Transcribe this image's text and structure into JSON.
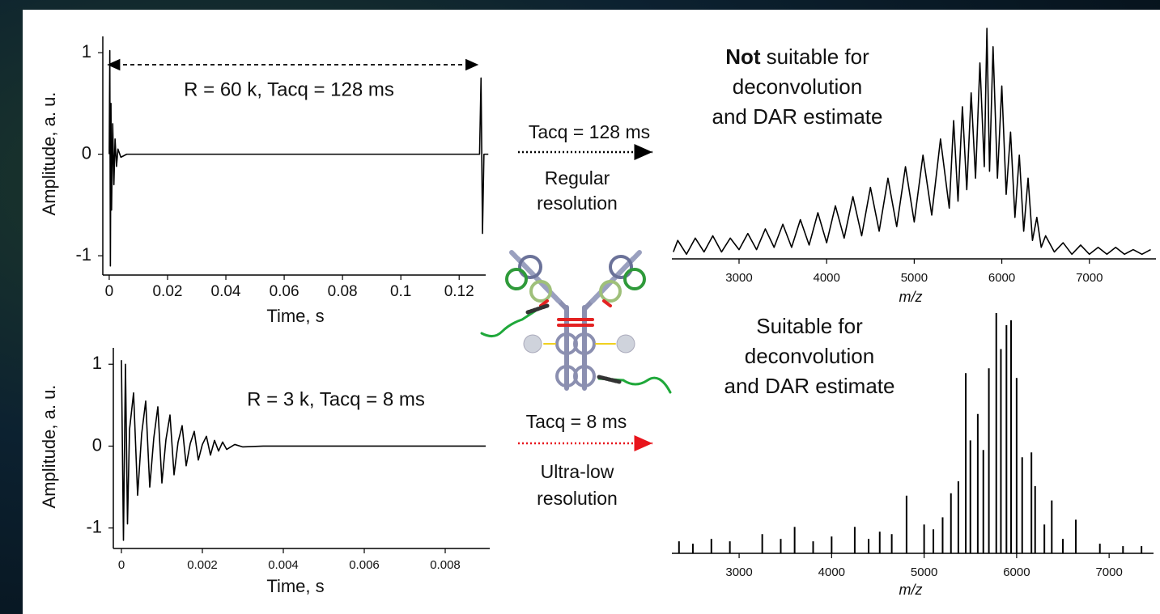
{
  "chart_data": [
    {
      "type": "line",
      "annotation": "R = 60 k, Tacq = 128 ms",
      "xlabel": "Time, s",
      "ylabel": "Amplitude, a. u.",
      "color": "#000000",
      "annotation_color": "#000000",
      "xlim": [
        -0.0022,
        0.1291
      ],
      "ylim": [
        -1.19,
        1.16
      ],
      "xticks": [
        0,
        0.02,
        0.04,
        0.06,
        0.08,
        0.1,
        0.12
      ],
      "yticks": [
        -1,
        0,
        1
      ],
      "x": [
        0,
        0.0002,
        0.0004,
        0.0006,
        0.0008,
        0.0012,
        0.0016,
        0.002,
        0.0025,
        0.003,
        0.004,
        0.006,
        0.127,
        0.1275,
        0.128,
        0.1285,
        0.13
      ],
      "values": [
        0,
        1.02,
        -1.1,
        0.5,
        -0.55,
        0.3,
        -0.3,
        0.15,
        -0.12,
        0.05,
        -0.03,
        0,
        0,
        0.75,
        -0.78,
        0,
        0
      ]
    },
    {
      "type": "line",
      "annotation": "R = 3 k, Tacq = 8 ms",
      "xlabel": "Time, s",
      "ylabel": "Amplitude, a. u.",
      "color": "#000000",
      "annotation_color": "#e8141b",
      "xlim": [
        -0.0002,
        0.0091
      ],
      "ylim": [
        -1.25,
        1.2
      ],
      "xticks": [
        0,
        0.002,
        0.004,
        0.006,
        0.008
      ],
      "yticks": [
        -1,
        0,
        1
      ],
      "x": [
        0,
        5e-05,
        0.0001,
        0.00015,
        0.0002,
        0.0003,
        0.0004,
        0.0005,
        0.0006,
        0.0007,
        0.0008,
        0.0009,
        0.001,
        0.0011,
        0.0012,
        0.0013,
        0.0014,
        0.0015,
        0.0016,
        0.0017,
        0.0018,
        0.0019,
        0.002,
        0.0021,
        0.0022,
        0.0023,
        0.0024,
        0.0025,
        0.0026,
        0.0028,
        0.003,
        0.0035,
        0.009
      ],
      "values": [
        1.05,
        -1.15,
        1.0,
        -0.95,
        0.2,
        0.65,
        -0.6,
        0.15,
        0.55,
        -0.5,
        0.1,
        0.48,
        -0.45,
        0.08,
        0.38,
        -0.35,
        0.05,
        0.25,
        -0.24,
        0.03,
        0.18,
        -0.17,
        0.02,
        0.12,
        -0.11,
        0.07,
        -0.06,
        0.05,
        -0.04,
        0.02,
        -0.01,
        0,
        0
      ]
    },
    {
      "type": "line",
      "title_emphasis": "Not",
      "title_rest": "suitable for",
      "title": [
        "deconvolution",
        "and DAR estimate"
      ],
      "xlabel": "m/z",
      "color": "#000000",
      "xlim": [
        2233,
        7760
      ],
      "ylim": [
        0,
        100
      ],
      "xticks": [
        3000,
        4000,
        5000,
        6000,
        7000
      ],
      "x": [
        2250,
        2300,
        2400,
        2500,
        2600,
        2700,
        2800,
        2900,
        3000,
        3100,
        3200,
        3300,
        3400,
        3500,
        3600,
        3700,
        3800,
        3900,
        4000,
        4100,
        4200,
        4300,
        4400,
        4500,
        4600,
        4700,
        4800,
        4900,
        5000,
        5100,
        5200,
        5300,
        5400,
        5450,
        5500,
        5550,
        5600,
        5650,
        5700,
        5750,
        5800,
        5830,
        5860,
        5900,
        5950,
        6000,
        6050,
        6100,
        6150,
        6200,
        6250,
        6300,
        6350,
        6400,
        6450,
        6500,
        6600,
        6700,
        6800,
        6900,
        7000,
        7100,
        7200,
        7300,
        7400,
        7500,
        7600,
        7700
      ],
      "values": [
        3,
        8,
        2,
        9,
        3,
        10,
        3,
        9,
        4,
        11,
        4,
        13,
        5,
        15,
        5,
        17,
        6,
        20,
        7,
        23,
        9,
        27,
        10,
        31,
        12,
        35,
        14,
        40,
        16,
        45,
        19,
        52,
        22,
        60,
        25,
        66,
        30,
        72,
        35,
        85,
        40,
        100,
        38,
        92,
        35,
        75,
        28,
        55,
        18,
        45,
        12,
        35,
        8,
        18,
        5,
        10,
        3,
        7,
        2,
        6,
        2,
        5,
        2,
        5,
        2,
        4,
        2,
        4
      ]
    },
    {
      "type": "stem",
      "title": [
        "Suitable for",
        "deconvolution",
        "and DAR estimate"
      ],
      "xlabel": "m/z",
      "color": "#000000",
      "xlim": [
        2273,
        7480
      ],
      "ylim": [
        0,
        100
      ],
      "xticks": [
        3000,
        4000,
        5000,
        6000,
        7000
      ],
      "x": [
        2350,
        2500,
        2700,
        2900,
        3250,
        3450,
        3600,
        3800,
        4000,
        4250,
        4400,
        4520,
        4650,
        4810,
        5000,
        5100,
        5200,
        5290,
        5370,
        5450,
        5500,
        5580,
        5640,
        5700,
        5780,
        5830,
        5890,
        5940,
        6000,
        6060,
        6160,
        6200,
        6300,
        6380,
        6500,
        6640,
        6900,
        7150,
        7350
      ],
      "values": [
        5,
        4,
        6,
        5,
        8,
        6,
        11,
        5,
        7,
        11,
        6,
        9,
        8,
        24,
        12,
        10,
        15,
        25,
        30,
        75,
        47,
        58,
        43,
        77,
        100,
        85,
        95,
        97,
        73,
        40,
        42,
        28,
        12,
        22,
        6,
        14,
        4,
        3,
        3
      ]
    }
  ],
  "annotations": {
    "upper_arrow_label": "Tacq = 128 ms",
    "upper_caption": [
      "Regular",
      "resolution"
    ],
    "lower_arrow_label": "Tacq = 8 ms",
    "lower_caption": [
      "Ultra-low",
      "resolution"
    ],
    "lower_color": "#e8141b"
  }
}
